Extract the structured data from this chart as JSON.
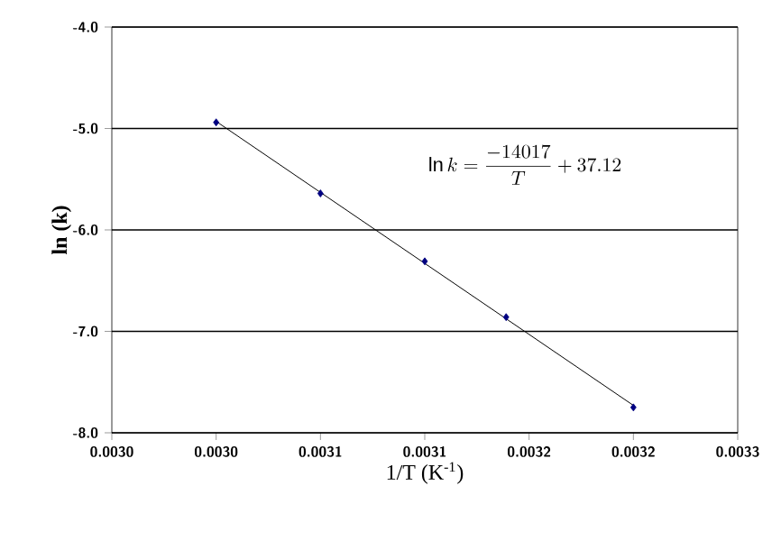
{
  "chart_data": {
    "type": "scatter",
    "xlabel": "1/T  (K$^{-1}$)",
    "ylabel": "ln (k)",
    "xlim": [
      0.00295,
      0.00325
    ],
    "xticks": [
      {
        "value": 0.00295,
        "label": "0.0030"
      },
      {
        "value": 0.003,
        "label": "0.0030"
      },
      {
        "value": 0.00305,
        "label": "0.0031"
      },
      {
        "value": 0.0031,
        "label": "0.0031"
      },
      {
        "value": 0.00315,
        "label": "0.0032"
      },
      {
        "value": 0.0032,
        "label": "0.0032"
      },
      {
        "value": 0.00325,
        "label": "0.0033"
      }
    ],
    "ylim": [
      -8,
      -4
    ],
    "yticks": [
      {
        "value": -8,
        "label": "-8.0"
      },
      {
        "value": -7,
        "label": "-7.0"
      },
      {
        "value": -6,
        "label": "-6.0"
      },
      {
        "value": -5,
        "label": "-5.0"
      },
      {
        "value": -4,
        "label": "-4.0"
      }
    ],
    "grid": "y",
    "series": [
      {
        "color": "#000080",
        "marker": "diamond",
        "x": [
          0.003,
          0.00305,
          0.0031,
          0.003139,
          0.0032
        ],
        "values": [
          -4.94,
          -5.64,
          -6.31,
          -6.86,
          -7.75
        ]
      },
      {
        "type": "line",
        "color": "#000000",
        "marker": "none",
        "line_style": "solid",
        "x": [
          0.003,
          0.0032
        ],
        "values": [
          -4.93,
          -7.73
        ]
      }
    ],
    "annotations": [
      "\\ln k = \\frac{-14017}{T} + 37.12"
    ]
  }
}
